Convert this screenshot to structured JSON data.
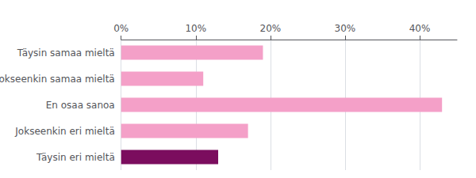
{
  "chart_data": {
    "type": "bar",
    "orientation": "horizontal",
    "categories": [
      "Täysin samaa mieltä",
      "Jokseenkin samaa mieltä",
      "En osaa sanoa",
      "Jokseenkin eri mieltä",
      "Täysin eri mieltä"
    ],
    "values": [
      19,
      11,
      43,
      17,
      13
    ],
    "colors": [
      "#f4a0c8",
      "#f4a0c8",
      "#f4a0c8",
      "#f4a0c8",
      "#7b0d5e"
    ],
    "xlim": [
      0,
      45
    ],
    "xticks": [
      {
        "value": 0,
        "label": "0%"
      },
      {
        "value": 10,
        "label": "10%"
      },
      {
        "value": 20,
        "label": "20%"
      },
      {
        "value": 30,
        "label": "30%"
      },
      {
        "value": 40,
        "label": "40%"
      }
    ],
    "grid": true
  }
}
